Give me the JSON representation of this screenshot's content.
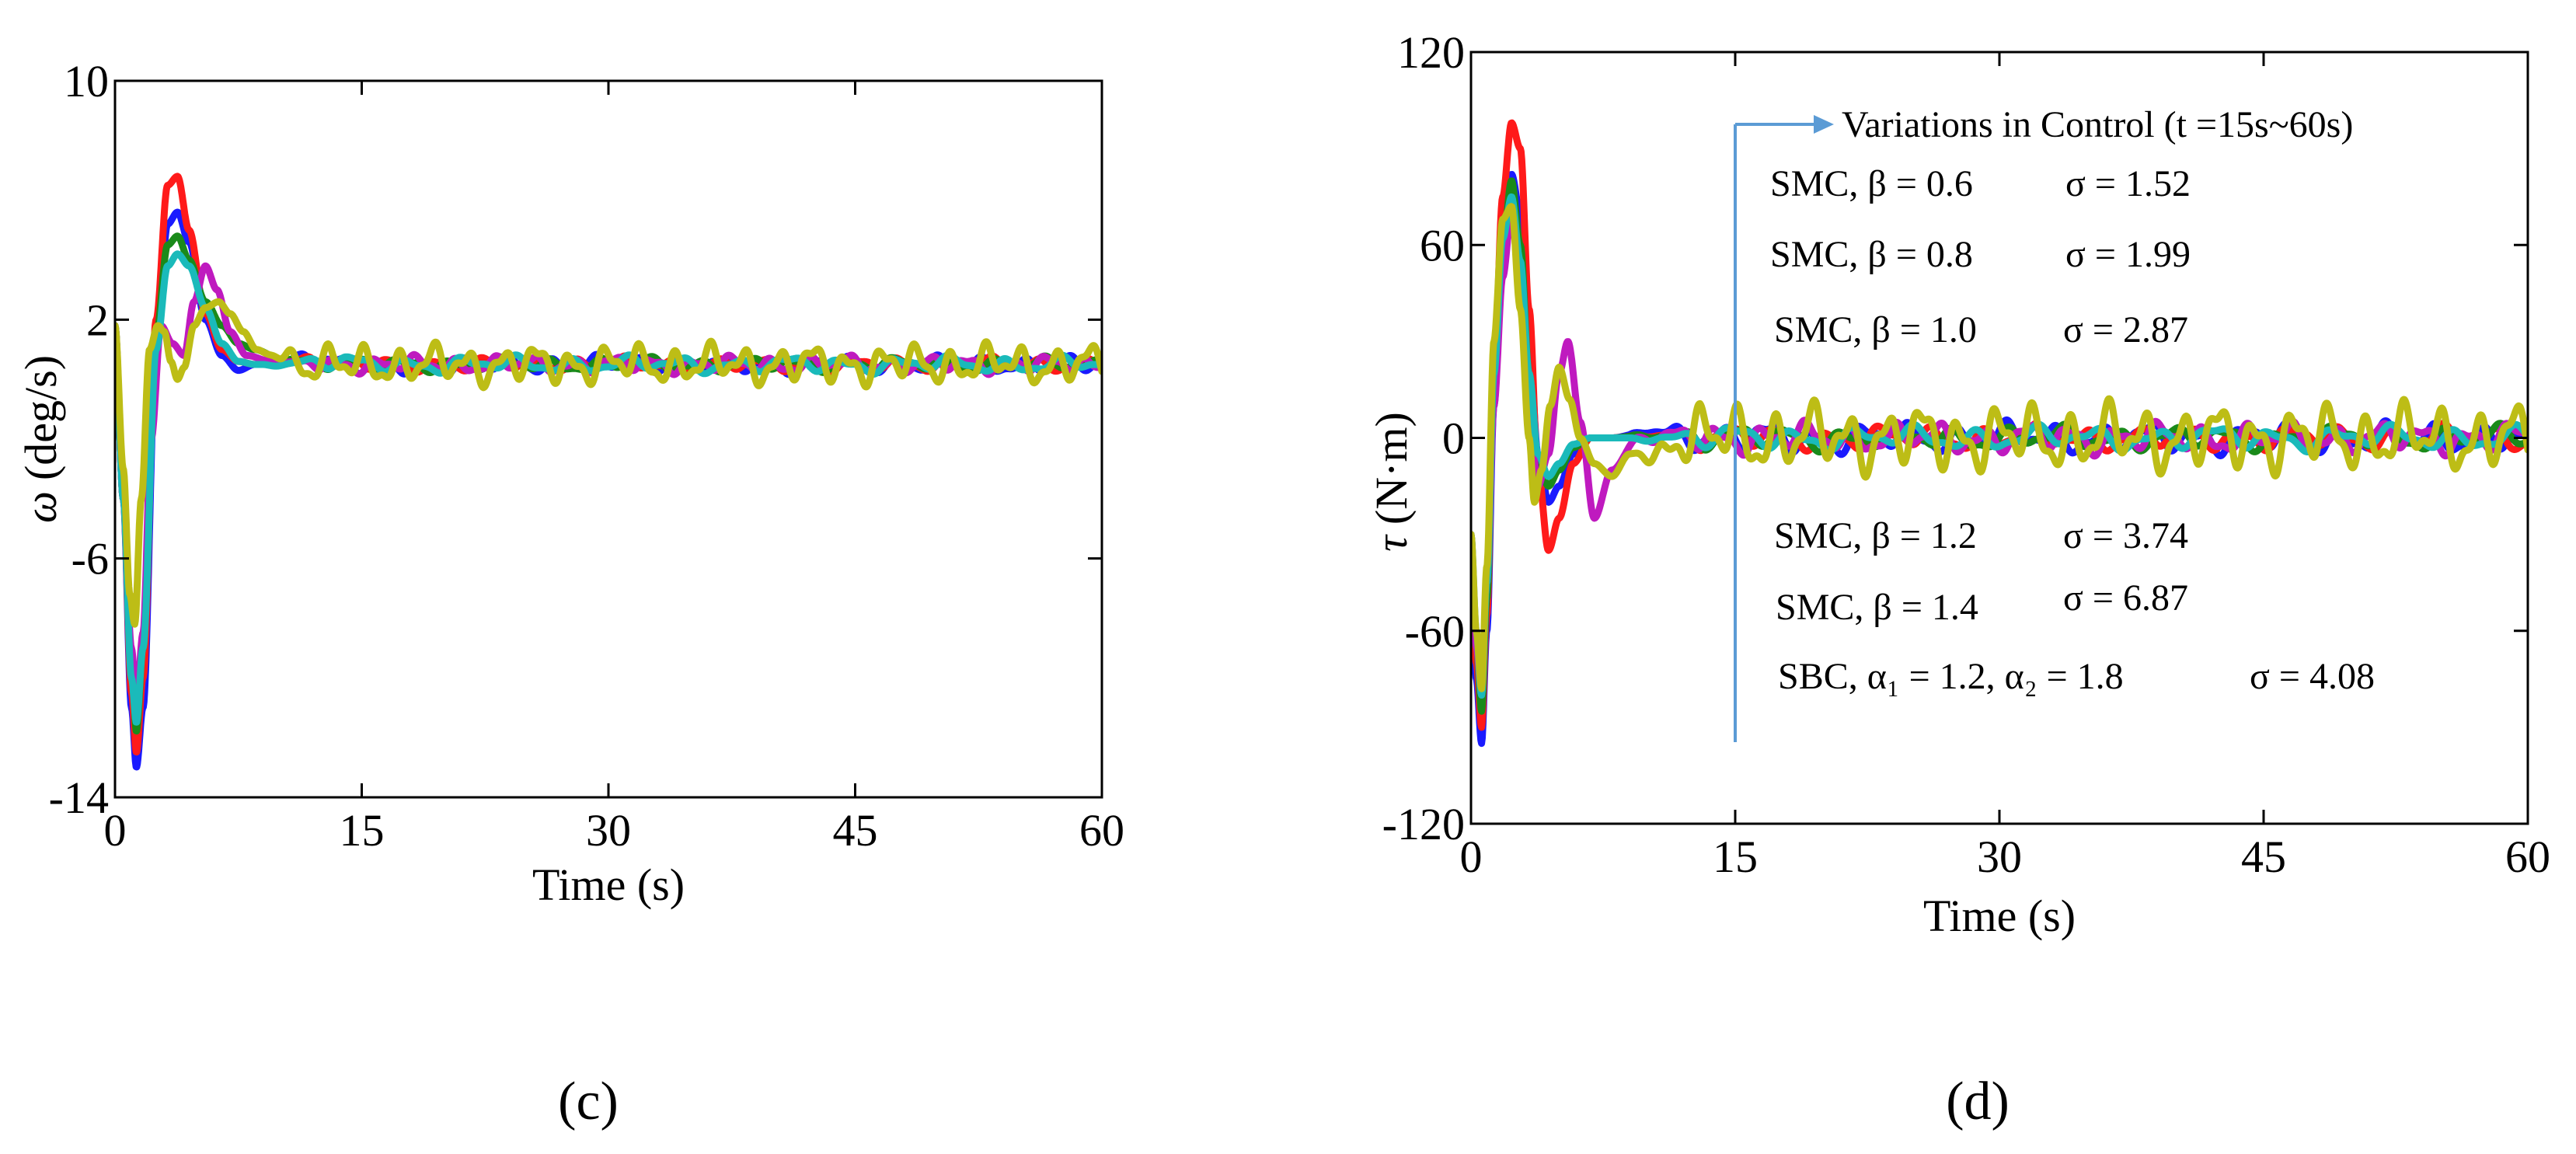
{
  "chart_data": [
    {
      "id": "c",
      "type": "line",
      "caption": "(c)",
      "xlabel": "Time (s)",
      "ylabel_symbol": "ω",
      "ylabel_unit": "(deg/s)",
      "xlim": [
        0,
        60
      ],
      "ylim": [
        -14,
        10
      ],
      "xticks": [
        "0",
        "15",
        "30",
        "45",
        "60"
      ],
      "yticks": [
        "-14",
        "-6",
        "2",
        "10"
      ],
      "xtick_values": [
        0,
        15,
        30,
        45,
        60
      ],
      "ytick_values": [
        -14,
        -6,
        2,
        10
      ],
      "series": [
        {
          "name": "SMC, β = 0.6",
          "color": "#1a1aff",
          "x": [
            0,
            0.5,
            1.0,
            1.3,
            1.7,
            2.5,
            3.2,
            3.8,
            4.5,
            5.5,
            6.5,
            7.5,
            8.5,
            10,
            12,
            15,
            20,
            30,
            45,
            60
          ],
          "y": [
            1.8,
            -4,
            -11,
            -13,
            -11,
            1,
            5.2,
            5.6,
            4.6,
            2.0,
            0.8,
            0.3,
            0.5,
            0.6,
            0.8,
            0.4,
            0.5,
            0.5,
            0.5,
            0.5
          ],
          "noise_amp": 0.3,
          "noise_period": 2.6
        },
        {
          "name": "SMC, β = 0.8",
          "color": "#ff1a1a",
          "x": [
            0,
            0.5,
            1.0,
            1.3,
            1.7,
            2.5,
            3.2,
            3.8,
            4.5,
            5.5,
            6.5,
            7.5,
            8.5,
            10,
            12,
            15,
            20,
            30,
            45,
            60
          ],
          "y": [
            1.8,
            -4,
            -10.5,
            -12.5,
            -10,
            2,
            6.5,
            6.8,
            5.0,
            2.2,
            1.0,
            0.6,
            0.5,
            0.5,
            0.7,
            0.5,
            0.5,
            0.5,
            0.5,
            0.5
          ],
          "noise_amp": 0.25,
          "noise_period": 2.8
        },
        {
          "name": "SMC, β = 1.0",
          "color": "#1a8a1a",
          "x": [
            0,
            0.5,
            1.0,
            1.3,
            1.7,
            2.5,
            3.2,
            3.8,
            4.5,
            5.5,
            6.5,
            7.5,
            8.5,
            10,
            12,
            15,
            20,
            30,
            45,
            60
          ],
          "y": [
            1.8,
            -4,
            -9.5,
            -11.8,
            -9,
            1.5,
            4.5,
            4.8,
            4.0,
            2.6,
            1.8,
            1.2,
            1.0,
            0.7,
            0.6,
            0.5,
            0.5,
            0.5,
            0.5,
            0.5
          ],
          "noise_amp": 0.25,
          "noise_period": 3.0
        },
        {
          "name": "SMC, β = 1.2",
          "color": "#bf1abf",
          "x": [
            0,
            0.5,
            1.0,
            1.3,
            1.7,
            2.2,
            2.8,
            3.5,
            4.2,
            4.8,
            5.5,
            6.2,
            7.0,
            8.0,
            9.5,
            11,
            13,
            15,
            20,
            30,
            45,
            60
          ],
          "y": [
            1.8,
            -4,
            -9.0,
            -10.8,
            -8.5,
            -2,
            1.8,
            1.2,
            0.8,
            2.6,
            3.8,
            3.0,
            1.6,
            0.8,
            0.6,
            0.5,
            0.5,
            0.5,
            0.5,
            0.5,
            0.5,
            0.5
          ],
          "noise_amp": 0.3,
          "noise_period": 2.4
        },
        {
          "name": "SMC, β = 1.4",
          "color": "#1ababa",
          "x": [
            0,
            0.5,
            1.0,
            1.3,
            1.7,
            2.5,
            3.2,
            3.8,
            4.5,
            5.5,
            6.5,
            7.5,
            8.5,
            10,
            12,
            15,
            20,
            30,
            45,
            60
          ],
          "y": [
            1.8,
            -4,
            -10,
            -11.5,
            -9,
            1.0,
            3.8,
            4.2,
            3.8,
            2.4,
            1.2,
            0.6,
            0.5,
            0.5,
            0.6,
            0.5,
            0.5,
            0.5,
            0.5,
            0.5
          ],
          "noise_amp": 0.3,
          "noise_period": 3.3
        },
        {
          "name": "SBC, α1 = 1.2, α2 = 1.8",
          "color": "#bdbd16",
          "x": [
            0,
            0.5,
            0.9,
            1.2,
            1.6,
            2.1,
            2.6,
            3.0,
            3.4,
            3.8,
            4.2,
            4.8,
            5.5,
            6.3,
            7.0,
            7.8,
            8.6,
            9.5,
            10.5,
            11.5,
            12.5,
            13.5,
            15,
            20,
            30,
            45,
            60
          ],
          "y": [
            1.8,
            -3,
            -7.2,
            -8.2,
            -4,
            1.0,
            1.8,
            1.6,
            0.6,
            0.0,
            0.4,
            1.8,
            2.4,
            2.6,
            2.2,
            1.6,
            1.0,
            0.8,
            0.9,
            0.3,
            0.6,
            0.4,
            0.5,
            0.5,
            0.5,
            0.5,
            0.5
          ],
          "noise_amp": 0.7,
          "noise_period": 2.1
        }
      ]
    },
    {
      "id": "d",
      "type": "line",
      "caption": "(d)",
      "xlabel": "Time (s)",
      "ylabel_symbol": "τ",
      "ylabel_unit": "(N·m)",
      "xlim": [
        0,
        60
      ],
      "ylim": [
        -120,
        120
      ],
      "xticks": [
        "0",
        "15",
        "30",
        "45",
        "60"
      ],
      "yticks": [
        "-120",
        "-60",
        "0",
        "60",
        "120"
      ],
      "xtick_values": [
        0,
        15,
        30,
        45,
        60
      ],
      "ytick_values": [
        -120,
        -60,
        0,
        60,
        120
      ],
      "series": [
        {
          "name": "SMC, β = 0.6",
          "color": "#1a1aff",
          "x": [
            0,
            0.3,
            0.6,
            0.9,
            1.3,
            1.8,
            2.3,
            2.8,
            3.3,
            3.8,
            4.4,
            5.0,
            5.8,
            6.8,
            8,
            10,
            15,
            30,
            45,
            60
          ],
          "y": [
            -35,
            -75,
            -95,
            -60,
            10,
            60,
            82,
            70,
            30,
            -5,
            -20,
            -15,
            -5,
            0,
            0,
            2,
            0,
            0,
            0,
            0
          ],
          "noise_amp": 5,
          "noise_period": 2.7
        },
        {
          "name": "SMC, β = 0.8",
          "color": "#ff1a1a",
          "x": [
            0,
            0.3,
            0.6,
            0.9,
            1.3,
            1.8,
            2.3,
            2.8,
            3.3,
            3.8,
            4.4,
            5.0,
            5.8,
            6.8,
            8,
            10,
            15,
            30,
            45,
            60
          ],
          "y": [
            -35,
            -70,
            -90,
            -55,
            20,
            75,
            98,
            90,
            40,
            -10,
            -35,
            -25,
            -8,
            0,
            0,
            1,
            0,
            0,
            0,
            0
          ],
          "noise_amp": 4,
          "noise_period": 2.9
        },
        {
          "name": "SMC, β = 1.0",
          "color": "#1a8a1a",
          "x": [
            0,
            0.3,
            0.6,
            0.9,
            1.3,
            1.8,
            2.3,
            2.8,
            3.3,
            3.8,
            4.4,
            5.0,
            5.8,
            6.8,
            8,
            10,
            15,
            30,
            45,
            60
          ],
          "y": [
            -30,
            -65,
            -85,
            -50,
            15,
            60,
            80,
            60,
            20,
            -8,
            -15,
            -10,
            -3,
            0,
            0,
            1,
            0,
            0,
            0,
            0
          ],
          "noise_amp": 4,
          "noise_period": 3.1
        },
        {
          "name": "SMC, β = 1.2",
          "color": "#bf1abf",
          "x": [
            0,
            0.3,
            0.6,
            0.9,
            1.3,
            1.8,
            2.3,
            2.8,
            3.3,
            3.8,
            4.4,
            5.0,
            5.5,
            6.2,
            7.0,
            8.0,
            9.5,
            11,
            15,
            30,
            45,
            60
          ],
          "y": [
            -30,
            -65,
            -80,
            -45,
            10,
            50,
            70,
            45,
            10,
            -15,
            -5,
            20,
            30,
            5,
            -25,
            -10,
            0,
            0,
            0,
            0,
            0,
            0
          ],
          "noise_amp": 5,
          "noise_period": 2.5
        },
        {
          "name": "SMC, β = 1.4",
          "color": "#1ababa",
          "x": [
            0,
            0.3,
            0.6,
            0.9,
            1.3,
            1.8,
            2.3,
            2.8,
            3.3,
            3.8,
            4.4,
            5.0,
            5.8,
            6.8,
            8,
            10,
            15,
            30,
            45,
            60
          ],
          "y": [
            -30,
            -60,
            -80,
            -45,
            20,
            62,
            75,
            55,
            20,
            -5,
            -12,
            -8,
            -2,
            0,
            0,
            0,
            0,
            0,
            0,
            0
          ],
          "noise_amp": 4,
          "noise_period": 3.4
        },
        {
          "name": "SBC, α1 = 1.2, α2 = 1.8",
          "color": "#bdbd16",
          "x": [
            0,
            0.3,
            0.6,
            0.9,
            1.3,
            1.8,
            2.3,
            2.8,
            3.3,
            3.6,
            4.0,
            4.5,
            5.0,
            5.6,
            6.2,
            7.0,
            8.0,
            9.0,
            10.5,
            12,
            15,
            30,
            45,
            60
          ],
          "y": [
            -30,
            -60,
            -78,
            -40,
            30,
            68,
            72,
            40,
            0,
            -20,
            -10,
            10,
            22,
            12,
            0,
            -8,
            -12,
            -5,
            -5,
            0,
            0,
            0,
            0,
            0
          ],
          "noise_amp": 11,
          "noise_period": 2.1
        }
      ],
      "annotations": {
        "arrow_label": "Variations in Control (t =15s~60s)",
        "arrow_time": 15,
        "sigma_labels": [
          {
            "text": "SMC, β = 0.6",
            "sigma": "σ = 1.52"
          },
          {
            "text": "SMC, β = 0.8",
            "sigma": "σ = 1.99"
          },
          {
            "text": "SMC, β = 1.0",
            "sigma": "σ = 2.87"
          },
          {
            "text": "SMC, β = 1.2",
            "sigma": "σ = 3.74"
          },
          {
            "text": "SMC, β = 1.4",
            "sigma": "σ = 6.87"
          },
          {
            "text": "SBC, α₁ = 1.2, α₂ = 1.8",
            "sigma": "σ = 4.08"
          }
        ]
      }
    }
  ]
}
